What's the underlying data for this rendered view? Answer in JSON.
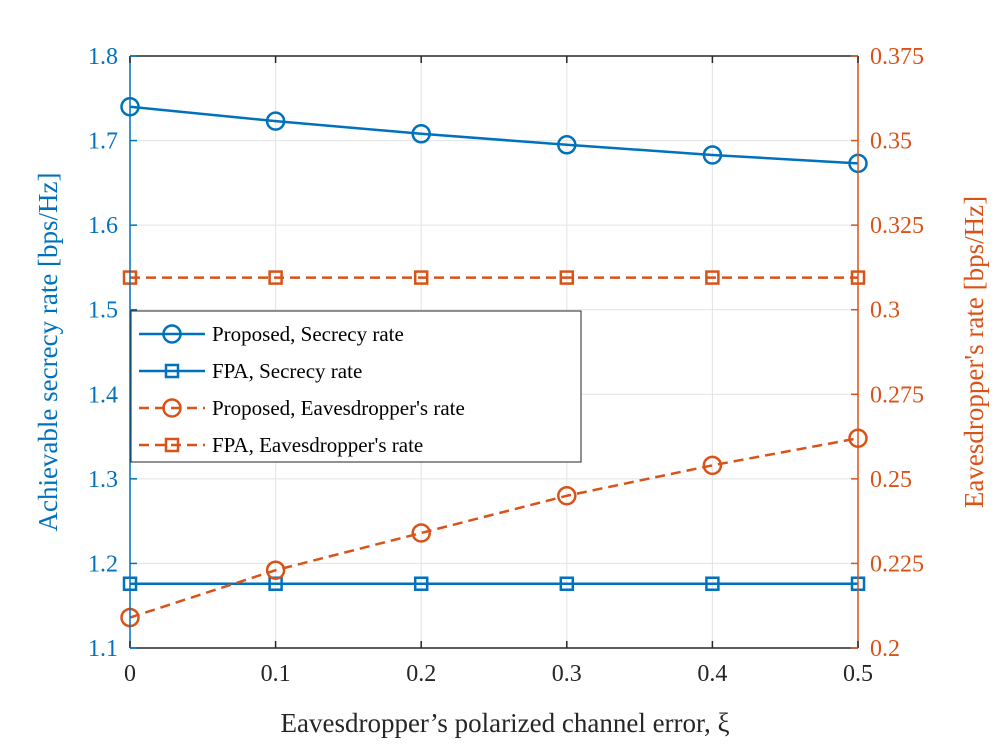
{
  "chart_data": {
    "type": "line",
    "x": [
      0,
      0.1,
      0.2,
      0.3,
      0.4,
      0.5
    ],
    "x_ticks": [
      "0",
      "0.1",
      "0.2",
      "0.3",
      "0.4",
      "0.5"
    ],
    "xlim": [
      0,
      0.5
    ],
    "xlabel": "Eavesdropper’s polarized channel error, ξ",
    "ylabel_left": "Achievable secrecy rate [bps/Hz]",
    "ylim_left": [
      1.1,
      1.8
    ],
    "yticks_left": [
      "1.1",
      "1.2",
      "1.3",
      "1.4",
      "1.5",
      "1.6",
      "1.7",
      "1.8"
    ],
    "ylabel_right": "Eavesdropper's rate [bps/Hz]",
    "ylim_right": [
      0.2,
      0.375
    ],
    "yticks_right": [
      "0.2",
      "0.225",
      "0.25",
      "0.275",
      "0.3",
      "0.325",
      "0.35",
      "0.375"
    ],
    "grid": true,
    "legend_position": "center-left",
    "colors": {
      "left": "#0072BD",
      "right": "#D95319",
      "axis": "#262626"
    },
    "series": [
      {
        "name": "Proposed, Secrecy rate",
        "axis": "left",
        "marker": "circle",
        "linestyle": "solid",
        "color": "#0072BD",
        "values": [
          1.74,
          1.723,
          1.708,
          1.695,
          1.683,
          1.673
        ]
      },
      {
        "name": "FPA, Secrecy rate",
        "axis": "left",
        "marker": "square",
        "linestyle": "solid",
        "color": "#0072BD",
        "values": [
          1.176,
          1.176,
          1.176,
          1.176,
          1.176,
          1.176
        ]
      },
      {
        "name": "Proposed, Eavesdropper's rate",
        "axis": "right",
        "marker": "circle",
        "linestyle": "dashed",
        "color": "#D95319",
        "values": [
          0.209,
          0.223,
          0.234,
          0.245,
          0.254,
          0.262
        ]
      },
      {
        "name": "FPA, Eavesdropper's rate",
        "axis": "right",
        "marker": "square",
        "linestyle": "dashed",
        "color": "#D95319",
        "values": [
          0.3095,
          0.3095,
          0.3095,
          0.3095,
          0.3095,
          0.3095
        ]
      }
    ]
  }
}
